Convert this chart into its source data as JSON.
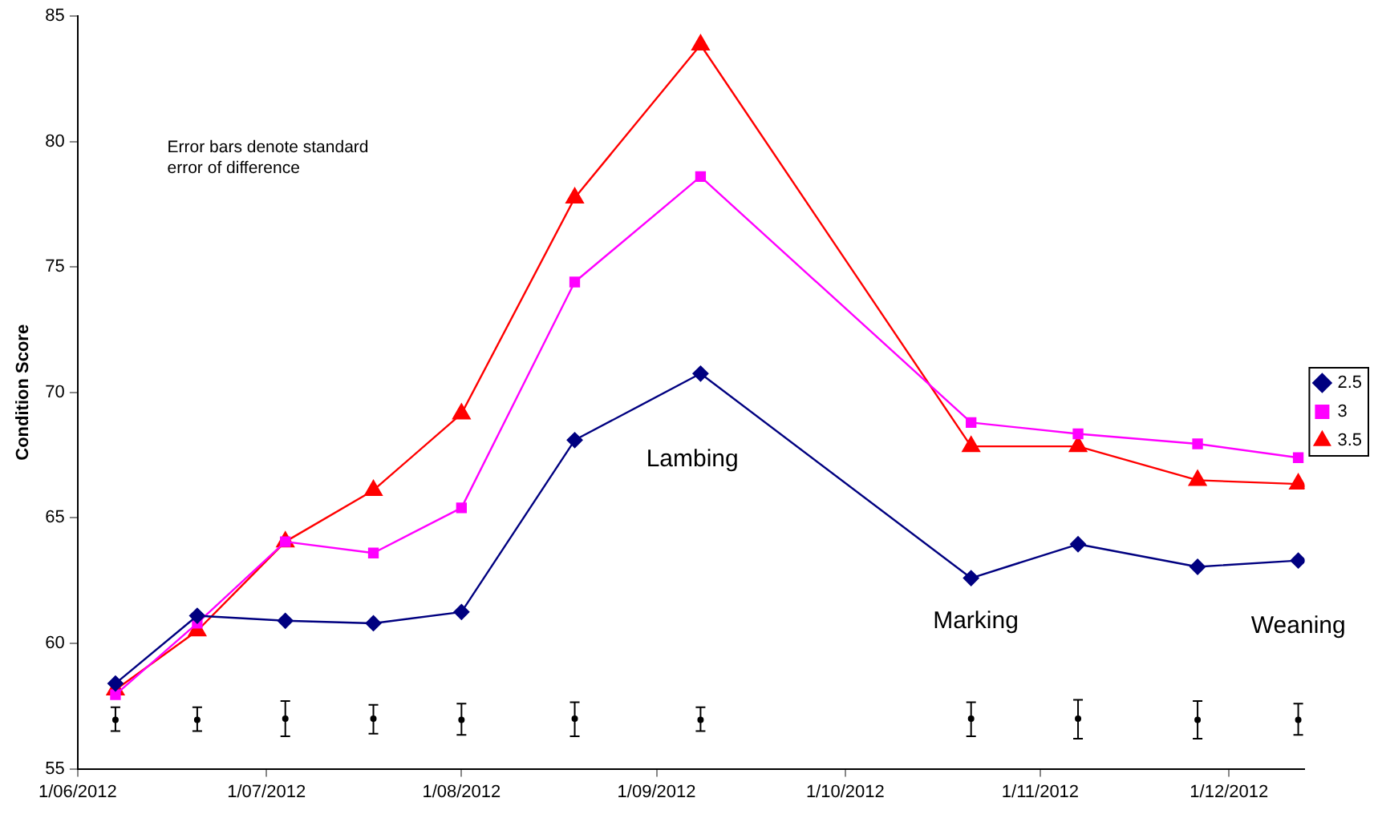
{
  "chart_data": {
    "type": "line",
    "ylabel": "Condition Score",
    "x": [
      "2012-06-07",
      "2012-06-20",
      "2012-07-04",
      "2012-07-18",
      "2012-08-01",
      "2012-08-19",
      "2012-09-08",
      "2012-10-21",
      "2012-11-07",
      "2012-11-26",
      "2012-12-12"
    ],
    "series": [
      {
        "name": "2.5",
        "color": "#000080",
        "marker": "diamond",
        "values": [
          58.4,
          61.1,
          60.9,
          60.8,
          61.25,
          68.1,
          70.75,
          62.6,
          63.95,
          63.05,
          63.3
        ]
      },
      {
        "name": "3",
        "color": "#ff00ff",
        "marker": "square",
        "values": [
          57.95,
          60.8,
          64.05,
          63.6,
          65.4,
          74.4,
          78.6,
          68.8,
          68.35,
          67.95,
          67.4
        ]
      },
      {
        "name": "3.5",
        "color": "#ff0000",
        "marker": "triangle",
        "values": [
          58.15,
          60.5,
          64.05,
          66.1,
          69.15,
          77.75,
          83.85,
          67.85,
          67.85,
          66.5,
          66.35
        ]
      },
      {
        "type": "scatter",
        "color": "#000000",
        "marker": "circle",
        "values": [
          56.95,
          56.95,
          57.0,
          57.0,
          56.95,
          57.0,
          56.95,
          57.0,
          57.0,
          56.95,
          56.95
        ],
        "errors": [
          [
            56.5,
            57.45
          ],
          [
            56.5,
            57.45
          ],
          [
            56.3,
            57.7
          ],
          [
            56.4,
            57.55
          ],
          [
            56.35,
            57.6
          ],
          [
            56.3,
            57.65
          ],
          [
            56.5,
            57.45
          ],
          [
            56.3,
            57.65
          ],
          [
            56.2,
            57.75
          ],
          [
            56.2,
            57.7
          ],
          [
            56.35,
            57.6
          ]
        ]
      }
    ],
    "xlim": [
      "2012-06-01",
      "2012-12-13"
    ],
    "xticks": [
      {
        "value": "2012-06-01",
        "label": "1/06/2012"
      },
      {
        "value": "2012-07-01",
        "label": "1/07/2012"
      },
      {
        "value": "2012-08-01",
        "label": "1/08/2012"
      },
      {
        "value": "2012-09-01",
        "label": "1/09/2012"
      },
      {
        "value": "2012-10-01",
        "label": "1/10/2012"
      },
      {
        "value": "2012-11-01",
        "label": "1/11/2012"
      },
      {
        "value": "2012-12-01",
        "label": "1/12/2012"
      }
    ],
    "ylim": [
      55,
      85
    ],
    "yticks": [
      55,
      60,
      65,
      70,
      75,
      80,
      85
    ],
    "grid": false,
    "legend": "right",
    "annotations": [
      "Error bars denote standard error of difference",
      "Lambing",
      "Marking",
      "Weaning"
    ]
  }
}
